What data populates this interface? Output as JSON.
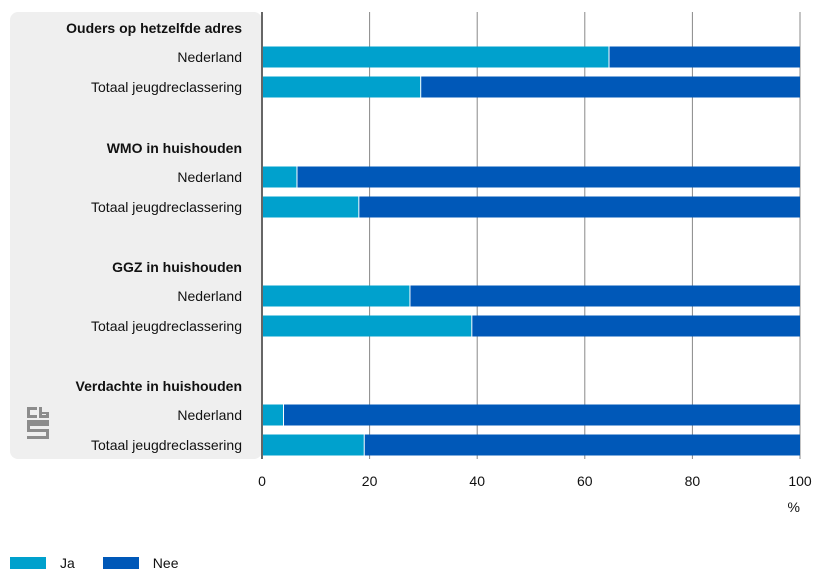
{
  "chart_data": {
    "type": "bar",
    "orientation": "horizontal",
    "stacked": true,
    "unit_label": "%",
    "xlim": [
      0,
      100
    ],
    "x_ticks": [
      "0",
      "20",
      "40",
      "60",
      "80",
      "100"
    ],
    "groups": [
      {
        "title": "Ouders op hetzelfde adres",
        "rows": [
          {
            "label": "Nederland",
            "ja": 64.5,
            "nee": 35.5
          },
          {
            "label": "Totaal jeugdreclassering",
            "ja": 29.5,
            "nee": 70.5
          }
        ]
      },
      {
        "title": "WMO in huishouden",
        "rows": [
          {
            "label": "Nederland",
            "ja": 6.5,
            "nee": 93.5
          },
          {
            "label": "Totaal jeugdreclassering",
            "ja": 18.0,
            "nee": 82.0
          }
        ]
      },
      {
        "title": "GGZ in huishouden",
        "rows": [
          {
            "label": "Nederland",
            "ja": 27.5,
            "nee": 72.5
          },
          {
            "label": "Totaal jeugdreclassering",
            "ja": 39.0,
            "nee": 61.0
          }
        ]
      },
      {
        "title": "Verdachte in huishouden",
        "rows": [
          {
            "label": "Nederland",
            "ja": 4.0,
            "nee": 96.0
          },
          {
            "label": "Totaal jeugdreclassering",
            "ja": 19.0,
            "nee": 81.0
          }
        ]
      }
    ],
    "series": [
      {
        "name": "Ja",
        "color": "#00a1cd"
      },
      {
        "name": "Nee",
        "color": "#0058b8"
      }
    ],
    "grid": true,
    "legend_position": "bottom-left"
  },
  "logo_icon": "cbs-logo-icon"
}
